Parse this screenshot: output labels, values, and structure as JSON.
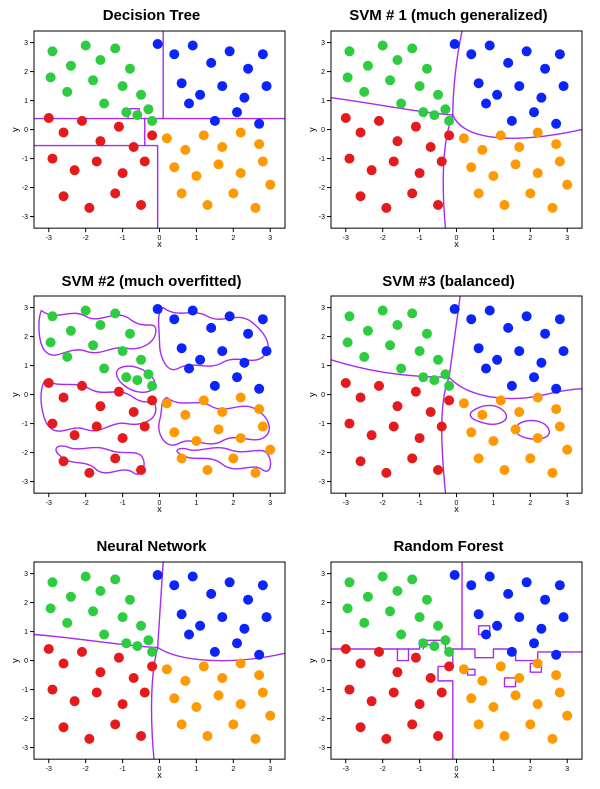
{
  "layout": {
    "rows": 3,
    "cols": 2
  },
  "axis": {
    "xlabel": "x",
    "ylabel": "y",
    "xlim": [
      -3.4,
      3.4
    ],
    "ylim": [
      -3.4,
      3.4
    ],
    "xticks": [
      -3,
      -2,
      -1,
      0,
      1,
      2,
      3
    ],
    "yticks": [
      -3,
      -2,
      -1,
      0,
      1,
      2,
      3
    ],
    "tick_fontsize": 7,
    "label_fontsize": 9,
    "tick_len": 4,
    "box_stroke": "#000000",
    "box_stroke_width": 1
  },
  "style": {
    "title_fontsize": 15,
    "title_color": "#000000",
    "background_color": "#ffffff",
    "point_radius": 5,
    "point_opacity": 1,
    "boundary_color": "#a020f0",
    "boundary_width": 1.4,
    "boundary_opacity": 0.95
  },
  "class_colors": {
    "r": "#e41a1c",
    "g": "#2ecc40",
    "b": "#0b24fb",
    "o": "#ff9900"
  },
  "points": [
    {
      "x": -2.9,
      "y": 2.7,
      "c": "g"
    },
    {
      "x": -2.4,
      "y": 2.2,
      "c": "g"
    },
    {
      "x": -2.0,
      "y": 2.9,
      "c": "g"
    },
    {
      "x": -1.6,
      "y": 2.4,
      "c": "g"
    },
    {
      "x": -1.2,
      "y": 2.8,
      "c": "g"
    },
    {
      "x": -0.8,
      "y": 2.1,
      "c": "g"
    },
    {
      "x": -1.0,
      "y": 1.5,
      "c": "g"
    },
    {
      "x": -1.8,
      "y": 1.7,
      "c": "g"
    },
    {
      "x": -2.5,
      "y": 1.3,
      "c": "g"
    },
    {
      "x": -0.5,
      "y": 1.2,
      "c": "g"
    },
    {
      "x": -0.3,
      "y": 0.7,
      "c": "g"
    },
    {
      "x": -0.6,
      "y": 0.5,
      "c": "g"
    },
    {
      "x": -0.9,
      "y": 0.6,
      "c": "g"
    },
    {
      "x": -0.2,
      "y": 0.3,
      "c": "g"
    },
    {
      "x": -1.5,
      "y": 0.9,
      "c": "g"
    },
    {
      "x": -2.95,
      "y": 1.8,
      "c": "g"
    },
    {
      "x": -0.05,
      "y": 2.95,
      "c": "b"
    },
    {
      "x": 0.4,
      "y": 2.6,
      "c": "b"
    },
    {
      "x": 0.9,
      "y": 2.9,
      "c": "b"
    },
    {
      "x": 1.4,
      "y": 2.3,
      "c": "b"
    },
    {
      "x": 1.9,
      "y": 2.7,
      "c": "b"
    },
    {
      "x": 2.4,
      "y": 2.1,
      "c": "b"
    },
    {
      "x": 2.8,
      "y": 2.6,
      "c": "b"
    },
    {
      "x": 0.6,
      "y": 1.6,
      "c": "b"
    },
    {
      "x": 1.1,
      "y": 1.2,
      "c": "b"
    },
    {
      "x": 1.7,
      "y": 1.5,
      "c": "b"
    },
    {
      "x": 2.3,
      "y": 1.1,
      "c": "b"
    },
    {
      "x": 2.9,
      "y": 1.5,
      "c": "b"
    },
    {
      "x": 2.1,
      "y": 0.6,
      "c": "b"
    },
    {
      "x": 2.7,
      "y": 0.2,
      "c": "b"
    },
    {
      "x": 1.5,
      "y": 0.3,
      "c": "b"
    },
    {
      "x": 0.8,
      "y": 0.9,
      "c": "b"
    },
    {
      "x": -3.0,
      "y": 0.4,
      "c": "r"
    },
    {
      "x": -2.6,
      "y": -0.1,
      "c": "r"
    },
    {
      "x": -2.1,
      "y": 0.3,
      "c": "r"
    },
    {
      "x": -1.6,
      "y": -0.4,
      "c": "r"
    },
    {
      "x": -1.1,
      "y": 0.1,
      "c": "r"
    },
    {
      "x": -0.7,
      "y": -0.6,
      "c": "r"
    },
    {
      "x": -0.2,
      "y": -0.2,
      "c": "r"
    },
    {
      "x": -2.9,
      "y": -1.0,
      "c": "r"
    },
    {
      "x": -2.3,
      "y": -1.4,
      "c": "r"
    },
    {
      "x": -1.7,
      "y": -1.1,
      "c": "r"
    },
    {
      "x": -1.0,
      "y": -1.5,
      "c": "r"
    },
    {
      "x": -0.4,
      "y": -1.1,
      "c": "r"
    },
    {
      "x": -2.6,
      "y": -2.3,
      "c": "r"
    },
    {
      "x": -1.9,
      "y": -2.7,
      "c": "r"
    },
    {
      "x": -1.2,
      "y": -2.2,
      "c": "r"
    },
    {
      "x": -0.5,
      "y": -2.6,
      "c": "r"
    },
    {
      "x": 0.2,
      "y": -0.3,
      "c": "o"
    },
    {
      "x": 0.7,
      "y": -0.7,
      "c": "o"
    },
    {
      "x": 1.2,
      "y": -0.2,
      "c": "o"
    },
    {
      "x": 1.7,
      "y": -0.6,
      "c": "o"
    },
    {
      "x": 2.2,
      "y": -0.1,
      "c": "o"
    },
    {
      "x": 2.7,
      "y": -0.5,
      "c": "o"
    },
    {
      "x": 0.4,
      "y": -1.3,
      "c": "o"
    },
    {
      "x": 1.0,
      "y": -1.6,
      "c": "o"
    },
    {
      "x": 1.6,
      "y": -1.2,
      "c": "o"
    },
    {
      "x": 2.2,
      "y": -1.5,
      "c": "o"
    },
    {
      "x": 2.8,
      "y": -1.1,
      "c": "o"
    },
    {
      "x": 0.6,
      "y": -2.2,
      "c": "o"
    },
    {
      "x": 1.3,
      "y": -2.6,
      "c": "o"
    },
    {
      "x": 2.0,
      "y": -2.2,
      "c": "o"
    },
    {
      "x": 2.6,
      "y": -2.7,
      "c": "o"
    },
    {
      "x": 3.0,
      "y": -1.9,
      "c": "o"
    }
  ],
  "panels": [
    {
      "title": "Decision Tree",
      "boundary": [
        "M -3.4 0.38 L 0.1 0.38",
        "M 0.1 3.4 L 0.1 0.38",
        "M 0.1 0.38 L 3.4 0.38",
        "M -3.4 -0.55 L -0.4 -0.55 L -0.4 0.38",
        "M -0.4 -0.55 L -0.05 -0.55 L -0.05 -3.4",
        "M -0.85 0.38 L -0.85 0.72 L -0.55 0.72 L -0.55 0.38"
      ]
    },
    {
      "title": "SVM # 1 (much generalized)",
      "boundary": [
        "M -3.4 1.1 C -2.2 0.9 -1.1 0.6 -0.1 0.5",
        "M -0.1 0.5 C -0.1 1.4 0.0 2.5 0.15 3.4",
        "M -0.1 0.5 C 0.2 -0.4 1.6 -0.5 3.4 0.0",
        "M -0.1 0.5 C -0.4 -0.4 -0.4 -2.0 -0.3 -3.4"
      ]
    },
    {
      "title": "SVM #2 (much overfitted)",
      "boundary": [
        "M -3.2 2.9 C -2.8 2.5 -2.4 3.0 -2.0 2.7 C -1.6 2.4 -1.2 3.0 -0.8 2.6 C -0.4 2.2 -0.1 2.6 -0.1 2.2 C -0.1 1.8 -0.5 1.5 -0.9 1.6 C -1.3 1.7 -1.6 1.3 -2.0 1.5 C -2.5 1.7 -2.8 1.1 -3.1 1.5 C -3.3 1.8 -3.3 2.6 -3.2 2.9 Z",
        "M -1.1 0.9 C -0.8 1.1 -0.4 0.9 -0.2 0.6 C 0.0 0.3 -0.2 0.0 -0.6 0.1 C -1.0 0.2 -1.3 0.7 -1.1 0.9 Z",
        "M 0.1 3.0 C 0.5 2.6 0.9 3.0 1.3 2.7 C 1.7 2.4 2.1 2.9 2.5 2.5 C 2.9 2.1 3.1 1.6 2.8 1.3 C 2.5 1.0 2.1 1.4 1.7 1.1 C 1.3 0.8 0.9 1.2 0.5 0.9 C 0.2 0.7 0.0 1.3 0.0 1.8 C 0.0 2.3 -0.1 2.8 0.1 3.0 Z",
        "M -3.1 0.5 C -2.7 0.2 -2.3 0.5 -1.9 0.2 C -1.5 -0.1 -1.1 0.3 -0.7 -0.1 C -0.4 -0.4 -0.1 -0.1 -0.1 -0.5 C -0.1 -0.9 -0.5 -1.1 -0.9 -1.0 C -1.3 -0.9 -1.6 -1.4 -2.0 -1.2 C -2.4 -1.0 -2.7 -1.5 -3.0 -1.1 C -3.2 -0.8 -3.3 0.1 -3.1 0.5 Z",
        "M -2.7 -2.1 C -2.4 -2.5 -2.0 -2.2 -1.7 -2.6 C -1.4 -2.9 -1.0 -2.4 -0.7 -2.7 C -0.5 -2.9 -0.3 -2.4 -0.5 -2.1 C -0.7 -1.9 -1.0 -2.1 -1.4 -1.9 C -1.8 -1.7 -2.2 -2.0 -2.5 -1.8 C -2.8 -1.7 -2.9 -1.9 -2.7 -2.1 Z",
        "M 0.2 -0.1 C 0.6 -0.5 1.0 -0.1 1.4 -0.4 C 1.8 -0.7 2.2 -0.2 2.6 -0.5 C 3.0 -0.8 3.1 -1.3 2.8 -1.5 C 2.5 -1.7 2.1 -1.3 1.7 -1.6 C 1.3 -1.9 0.9 -1.4 0.5 -1.7 C 0.2 -1.9 -0.1 -1.4 0.0 -0.9 C 0.1 -0.5 0.0 -0.2 0.2 -0.1 Z",
        "M 0.5 -2.0 C 0.9 -2.4 1.3 -2.0 1.7 -2.4 C 2.1 -2.8 2.5 -2.3 2.8 -2.6 C 3.0 -2.8 3.1 -2.3 2.9 -2.0 C 2.7 -1.8 2.3 -2.1 1.9 -1.9 C 1.5 -1.7 1.1 -2.0 0.8 -1.9 C 0.6 -1.8 0.4 -1.9 0.5 -2.0 Z"
      ]
    },
    {
      "title": "SVM #3 (balanced)",
      "boundary": [
        "M -3.4 1.2 C -2.4 0.8 -1.4 0.6 -0.2 0.6",
        "M -0.2 0.6 C -0.1 1.5 0.0 2.5 0.1 3.4",
        "M -0.2 0.6 C 0.3 -0.1 1.4 -0.3 2.4 0.0 C 2.9 0.15 3.2 0.2 3.4 0.2",
        "M -0.2 0.6 C -0.5 -0.3 -0.4 -2.0 -0.3 -3.4",
        "M 0.4 -0.6 C 0.7 -0.3 1.1 -0.3 1.3 -0.6 C 1.5 -0.9 1.1 -1.1 0.8 -1.0 C 0.5 -0.9 0.3 -0.8 0.4 -0.6 Z",
        "M 1.7 -1.0 C 2.0 -0.8 2.4 -0.9 2.5 -1.2 C 2.6 -1.5 2.2 -1.6 1.9 -1.5 C 1.6 -1.4 1.5 -1.2 1.7 -1.0 Z"
      ]
    },
    {
      "title": "Neural Network",
      "boundary": [
        "M -3.4 0.9 C -2.3 0.8 -1.0 0.5 -0.05 0.45",
        "M -0.05 0.45 C 0.0 1.4 0.05 2.5 0.1 3.4",
        "M -0.05 0.45 C 0.5 0.0 1.8 -0.2 3.4 0.25",
        "M -0.05 0.45 C -0.25 -0.5 -0.25 -2.0 -0.15 -3.4"
      ]
    },
    {
      "title": "Random Forest",
      "boundary": [
        "M -3.4 0.4 L -1.0 0.4 L -1.0 0.7 L -0.3 0.7 L -0.3 0.4 L 0.15 0.4",
        "M 0.15 3.4 L 0.15 0.4",
        "M 0.15 0.4 L 0.5 0.4 L 0.5 0.1 L 1.0 0.1 L 1.0 0.4 L 1.6 0.4 L 1.6 0.0 L 2.2 0.0 L 2.2 0.3 L 3.4 0.3",
        "M -0.1 0.4 L -0.1 -0.2 L -0.5 -0.2 L -0.5 -0.7 L -0.1 -0.7 L -0.1 -3.4",
        "M 0.6 0.9 L 0.9 0.9 L 0.9 1.2 L 0.6 1.2 Z",
        "M 1.3 -0.9 L 1.6 -0.9 L 1.6 -0.6 L 1.3 -0.6 Z",
        "M -0.9 0.4 L -0.9 0.55 L -0.6 0.55 L -0.6 0.4",
        "M 0.3 -0.5 L 0.5 -0.5 L 0.5 -0.3 L 0.3 -0.3 Z",
        "M 2.0 -0.4 L 2.3 -0.4 L 2.3 -0.1 L 2.0 -0.1 Z",
        "M -1.6 0.4 L -1.6 0.0 L -1.3 0.0 L -1.3 0.4"
      ]
    }
  ]
}
